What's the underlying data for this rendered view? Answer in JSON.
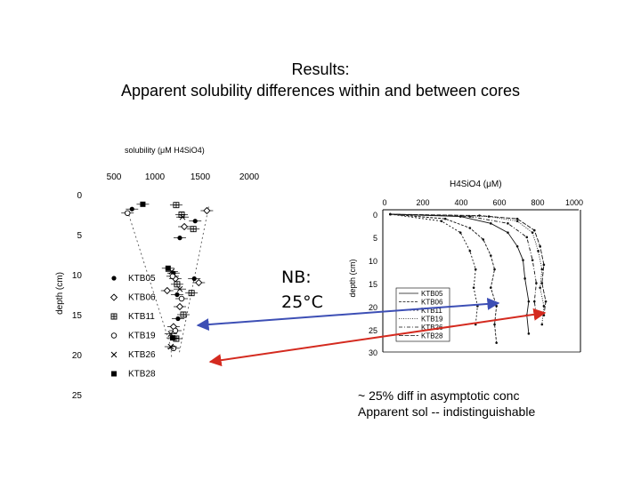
{
  "slide": {
    "title_line1": "Results:",
    "title_line2": "Apparent solubility differences within and between cores",
    "note_line1": "~ 25% diff in asymptotic conc",
    "note_line2": "Apparent sol -- indistinguishable",
    "handwritten_line1": "NB:",
    "handwritten_line2": "25°C"
  },
  "colors": {
    "blue_arrow": "#3d4fb5",
    "red_arrow": "#d42a1f"
  },
  "chart_data": [
    {
      "type": "scatter",
      "title": "solubility (μM H4SiO4)",
      "xlabel": "",
      "ylabel": "depth (cm)",
      "xlim": [
        500,
        2000
      ],
      "ylim": [
        25,
        0
      ],
      "axis_position": "top",
      "grid": false,
      "xticks": [
        "500",
        "1000",
        "1500",
        "2000"
      ],
      "yticks": [
        "0",
        "5",
        "10",
        "15",
        "20",
        "25"
      ],
      "legend": [
        "KTB05",
        "KTB06",
        "KTB11",
        "KTB19",
        "KTB26",
        "KTB28"
      ],
      "series": [
        {
          "name": "KTB05",
          "marker": "dot",
          "points": [
            [
              700,
              1.8
            ],
            [
              1400,
              3.3
            ],
            [
              1230,
              5.4
            ],
            [
              1160,
              9.8
            ],
            [
              1390,
              10.5
            ],
            [
              1200,
              12.5
            ],
            [
              1210,
              15.5
            ]
          ]
        },
        {
          "name": "KTB06",
          "marker": "diamond",
          "points": [
            [
              1530,
              2.0
            ],
            [
              1280,
              4.0
            ],
            [
              1180,
              10.5
            ],
            [
              1440,
              11.0
            ],
            [
              1090,
              12.0
            ],
            [
              1230,
              14.0
            ],
            [
              1160,
              16.5
            ]
          ]
        },
        {
          "name": "KTB11",
          "marker": "boxplus",
          "points": [
            [
              1190,
              1.3
            ],
            [
              1250,
              2.5
            ],
            [
              1380,
              4.3
            ],
            [
              1200,
              11.2
            ],
            [
              1360,
              12.3
            ],
            [
              1270,
              15.0
            ],
            [
              1190,
              18.0
            ]
          ]
        },
        {
          "name": "KTB19",
          "marker": "circle",
          "points": [
            [
              650,
              2.3
            ],
            [
              1150,
              10.2
            ],
            [
              1250,
              13.0
            ],
            [
              1180,
              17.0
            ],
            [
              1160,
              19.2
            ]
          ]
        },
        {
          "name": "KTB26",
          "marker": "cross",
          "points": [
            [
              1260,
              2.8
            ],
            [
              1140,
              9.6
            ],
            [
              1230,
              11.8
            ],
            [
              1130,
              17.4
            ],
            [
              1130,
              19.0
            ]
          ]
        },
        {
          "name": "KTB28",
          "marker": "square",
          "points": [
            [
              820,
              1.2
            ],
            [
              1100,
              9.2
            ],
            [
              1150,
              17.9
            ]
          ]
        }
      ],
      "envelope": {
        "left": [
          [
            650,
            2.0
          ],
          [
            1130,
            19.0
          ],
          [
            1140,
            20.5
          ]
        ],
        "right": [
          [
            1550,
            1.5
          ],
          [
            1220,
            20.0
          ]
        ]
      }
    },
    {
      "type": "line",
      "title": "H4SiO4 (μM)",
      "xlabel": "",
      "ylabel": "depth (cm)",
      "xlim": [
        0,
        1000
      ],
      "ylim": [
        30,
        0
      ],
      "axis_position": "top",
      "grid": false,
      "xticks": [
        "0",
        "200",
        "400",
        "600",
        "800",
        "1000"
      ],
      "yticks": [
        "0",
        "5",
        "10",
        "15",
        "20",
        "25",
        "30"
      ],
      "legend": [
        "KTB05",
        "KTB06",
        "KTB11",
        "KTB19",
        "KTB26",
        "KTB28"
      ],
      "series": [
        {
          "name": "KTB05",
          "values": [
            [
              30,
              0
            ],
            [
              400,
              0.5
            ],
            [
              560,
              2
            ],
            [
              650,
              4
            ],
            [
              700,
              7
            ],
            [
              730,
              10
            ],
            [
              740,
              14
            ],
            [
              760,
              19
            ],
            [
              750,
              22
            ],
            [
              760,
              26
            ]
          ]
        },
        {
          "name": "KTB06",
          "values": [
            [
              30,
              0
            ],
            [
              320,
              1
            ],
            [
              450,
              3
            ],
            [
              520,
              5.5
            ],
            [
              560,
              9
            ],
            [
              580,
              12
            ],
            [
              560,
              16
            ],
            [
              590,
              20
            ],
            [
              580,
              24
            ],
            [
              590,
              28
            ]
          ]
        },
        {
          "name": "KTB11",
          "values": [
            [
              30,
              0
            ],
            [
              300,
              1.5
            ],
            [
              400,
              4
            ],
            [
              450,
              8
            ],
            [
              480,
              12
            ],
            [
              470,
              16
            ],
            [
              490,
              20
            ],
            [
              480,
              24
            ]
          ]
        },
        {
          "name": "KTB19",
          "values": [
            [
              30,
              0
            ],
            [
              550,
              0.5
            ],
            [
              700,
              1.5
            ],
            [
              780,
              4
            ],
            [
              810,
              8
            ],
            [
              830,
              12
            ],
            [
              820,
              16
            ],
            [
              840,
              20
            ],
            [
              830,
              24
            ]
          ]
        },
        {
          "name": "KTB26",
          "values": [
            [
              30,
              0
            ],
            [
              450,
              0.5
            ],
            [
              650,
              2
            ],
            [
              750,
              5
            ],
            [
              780,
              10
            ],
            [
              800,
              15
            ],
            [
              790,
              19
            ],
            [
              800,
              22
            ]
          ]
        },
        {
          "name": "KTB28",
          "values": [
            [
              30,
              0
            ],
            [
              500,
              0.3
            ],
            [
              700,
              1
            ],
            [
              790,
              3.5
            ],
            [
              820,
              7
            ],
            [
              840,
              11
            ],
            [
              830,
              15
            ],
            [
              850,
              19
            ],
            [
              840,
              22
            ]
          ]
        }
      ]
    }
  ]
}
